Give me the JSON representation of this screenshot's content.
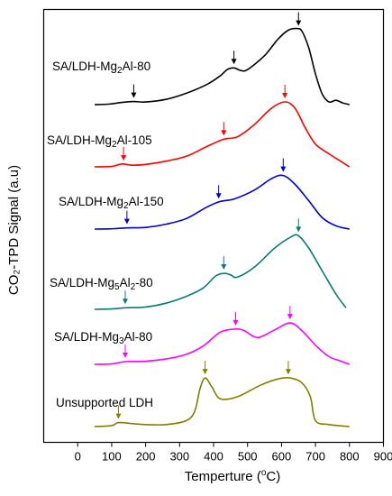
{
  "chart_data": {
    "type": "line",
    "xlabel": "Temperture (°C)",
    "xlabel_main": "Temperture (",
    "xlabel_unit_sup": "o",
    "xlabel_unit": "C)",
    "ylabel": "CO₂-TPD Signal (a.u)",
    "xlim": [
      -100,
      900
    ],
    "xticks": [
      0,
      100,
      200,
      300,
      400,
      500,
      600,
      700,
      800,
      900
    ],
    "y_tick_labels": "none",
    "grid": false,
    "legend": "labels placed beside each curve",
    "series": [
      {
        "name": "SA/LDH-Mg2Al-80",
        "label_prefix": "SA/LDH-Mg",
        "sub1": "2",
        "label_mid": "Al-80",
        "sub2": "",
        "label_suffix": "",
        "color": "#000000",
        "arrow_color": "#000000",
        "x": [
          50,
          90,
          130,
          165,
          200,
          260,
          320,
          380,
          420,
          440,
          460,
          480,
          500,
          550,
          590,
          620,
          645,
          660,
          680,
          700,
          720,
          740,
          760,
          780,
          800
        ],
        "y": [
          0.0,
          0.005,
          0.025,
          0.035,
          0.03,
          0.06,
          0.13,
          0.23,
          0.33,
          0.4,
          0.42,
          0.39,
          0.4,
          0.56,
          0.75,
          0.85,
          0.87,
          0.84,
          0.65,
          0.35,
          0.12,
          0.03,
          0.05,
          0.02,
          0.0
        ],
        "arrows_x": [
          165,
          460,
          650
        ]
      },
      {
        "name": "SA/LDH-Mg2Al-105",
        "label_prefix": "SA/LDH-Mg",
        "sub1": "2",
        "label_mid": "Al-105",
        "sub2": "",
        "label_suffix": "",
        "color": "#ff0000",
        "arrow_color": "#ff0000",
        "x": [
          50,
          100,
          130,
          160,
          200,
          260,
          320,
          380,
          430,
          470,
          520,
          570,
          610,
          640,
          670,
          700,
          740,
          770,
          800
        ],
        "y": [
          0.0,
          0.005,
          0.035,
          0.02,
          0.03,
          0.07,
          0.13,
          0.25,
          0.34,
          0.37,
          0.52,
          0.72,
          0.8,
          0.72,
          0.48,
          0.28,
          0.16,
          0.08,
          0.0
        ],
        "arrows_x": [
          135,
          430,
          610
        ]
      },
      {
        "name": "SA/LDH-Mg2Al-150",
        "label_prefix": "SA/LDH-Mg",
        "sub1": "2",
        "label_mid": "Al-150",
        "sub2": "",
        "label_suffix": "",
        "color": "#0000cc",
        "arrow_color": "#0000cc",
        "x": [
          50,
          100,
          145,
          200,
          260,
          320,
          380,
          420,
          460,
          520,
          570,
          605,
          640,
          680,
          720,
          760,
          800
        ],
        "y": [
          0.0,
          0.003,
          0.015,
          0.02,
          0.06,
          0.13,
          0.27,
          0.34,
          0.37,
          0.48,
          0.62,
          0.66,
          0.55,
          0.35,
          0.14,
          0.04,
          0.0
        ],
        "arrows_x": [
          145,
          415,
          605
        ]
      },
      {
        "name": "SA/LDH-Mg5Al2-80",
        "label_prefix": "SA/LDH-Mg",
        "sub1": "5",
        "label_mid": "Al",
        "sub2": "2",
        "label_suffix": "-80",
        "color": "#0b7a72",
        "arrow_color": "#0b7a72",
        "x": [
          50,
          100,
          140,
          200,
          260,
          320,
          370,
          405,
          430,
          450,
          470,
          520,
          580,
          630,
          650,
          680,
          720,
          760,
          790
        ],
        "y": [
          0.0,
          0.005,
          0.02,
          0.03,
          0.08,
          0.17,
          0.28,
          0.43,
          0.47,
          0.45,
          0.42,
          0.55,
          0.8,
          0.95,
          0.96,
          0.8,
          0.5,
          0.2,
          0.02
        ],
        "arrows_x": [
          140,
          430,
          650
        ]
      },
      {
        "name": "SA/LDH-Mg3Al-80",
        "label_prefix": "SA/LDH-Mg",
        "sub1": "3",
        "label_mid": "Al-80",
        "sub2": "",
        "label_suffix": "",
        "color": "#ff00ff",
        "arrow_color": "#ff00ff",
        "x": [
          50,
          100,
          140,
          200,
          260,
          320,
          370,
          420,
          465,
          490,
          530,
          580,
          625,
          660,
          700,
          740,
          770,
          800
        ],
        "y": [
          0.0,
          0.005,
          0.035,
          0.04,
          0.07,
          0.13,
          0.24,
          0.42,
          0.46,
          0.44,
          0.35,
          0.45,
          0.54,
          0.44,
          0.25,
          0.1,
          0.05,
          0.0
        ],
        "arrows_x": [
          140,
          465,
          625
        ]
      },
      {
        "name": "Unsupported LDH",
        "label_prefix": "Unsupported LDH",
        "sub1": "",
        "label_mid": "",
        "sub2": "",
        "label_suffix": "",
        "color": "#808000",
        "arrow_color": "#808000",
        "x": [
          50,
          100,
          120,
          160,
          200,
          260,
          320,
          345,
          360,
          375,
          395,
          420,
          470,
          540,
          590,
          625,
          660,
          685,
          700,
          740,
          800
        ],
        "y": [
          0.0,
          0.01,
          0.04,
          0.03,
          0.02,
          0.02,
          0.06,
          0.16,
          0.38,
          0.49,
          0.4,
          0.28,
          0.3,
          0.42,
          0.48,
          0.49,
          0.44,
          0.3,
          0.06,
          0.02,
          0.0
        ],
        "arrows_x": [
          120,
          375,
          620
        ]
      }
    ]
  }
}
